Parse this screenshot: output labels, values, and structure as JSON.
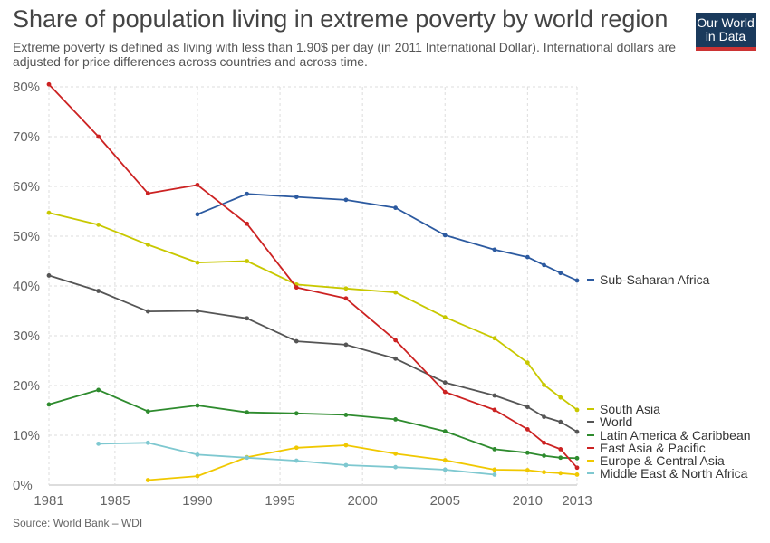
{
  "header": {
    "title": "Share of population living in extreme poverty by world region",
    "subtitle": "Extreme poverty is defined as living with less than 1.90$ per day (in 2011 International Dollar). International dollars are adjusted for price differences across countries and across time.",
    "logo_line1": "Our World",
    "logo_line2": "in Data"
  },
  "footer": {
    "source": "Source: World Bank – WDI"
  },
  "chart_data": {
    "type": "line",
    "title": "Share of population living in extreme poverty by world region",
    "xlabel": "",
    "ylabel": "",
    "xlim": [
      1981,
      2013
    ],
    "ylim": [
      0,
      80
    ],
    "x_ticks": [
      1981,
      1985,
      1990,
      1995,
      2000,
      2005,
      2010,
      2013
    ],
    "y_ticks": [
      0,
      10,
      20,
      30,
      40,
      50,
      60,
      70,
      80
    ],
    "y_tick_labels": [
      "0%",
      "10%",
      "20%",
      "30%",
      "40%",
      "50%",
      "60%",
      "70%",
      "80%"
    ],
    "grid": true,
    "legend": "right (labels at line ends)",
    "series": [
      {
        "name": "Sub-Saharan Africa",
        "color": "#2c5aa0",
        "points": [
          [
            1990,
            54.4
          ],
          [
            1993,
            58.5
          ],
          [
            1996,
            57.9
          ],
          [
            1999,
            57.3
          ],
          [
            2002,
            55.7
          ],
          [
            2005,
            50.2
          ],
          [
            2008,
            47.3
          ],
          [
            2010,
            45.8
          ],
          [
            2011,
            44.2
          ],
          [
            2012,
            42.6
          ],
          [
            2013,
            41.1
          ]
        ]
      },
      {
        "name": "South Asia",
        "color": "#c8c800",
        "points": [
          [
            1981,
            54.7
          ],
          [
            1984,
            52.3
          ],
          [
            1987,
            48.3
          ],
          [
            1990,
            44.7
          ],
          [
            1993,
            45.0
          ],
          [
            1996,
            40.3
          ],
          [
            1999,
            39.5
          ],
          [
            2002,
            38.7
          ],
          [
            2005,
            33.7
          ],
          [
            2008,
            29.5
          ],
          [
            2010,
            24.6
          ],
          [
            2011,
            20.1
          ],
          [
            2012,
            17.6
          ],
          [
            2013,
            15.1
          ]
        ]
      },
      {
        "name": "World",
        "color": "#555555",
        "points": [
          [
            1981,
            42.1
          ],
          [
            1984,
            39.0
          ],
          [
            1987,
            34.9
          ],
          [
            1990,
            35.0
          ],
          [
            1993,
            33.5
          ],
          [
            1996,
            28.9
          ],
          [
            1999,
            28.2
          ],
          [
            2002,
            25.4
          ],
          [
            2005,
            20.6
          ],
          [
            2008,
            18.0
          ],
          [
            2010,
            15.7
          ],
          [
            2011,
            13.7
          ],
          [
            2012,
            12.7
          ],
          [
            2013,
            10.7
          ]
        ]
      },
      {
        "name": "Latin America & Caribbean",
        "color": "#2e8b2e",
        "points": [
          [
            1981,
            16.2
          ],
          [
            1984,
            19.1
          ],
          [
            1987,
            14.8
          ],
          [
            1990,
            16.0
          ],
          [
            1993,
            14.6
          ],
          [
            1996,
            14.4
          ],
          [
            1999,
            14.1
          ],
          [
            2002,
            13.2
          ],
          [
            2005,
            10.8
          ],
          [
            2008,
            7.2
          ],
          [
            2010,
            6.5
          ],
          [
            2011,
            5.9
          ],
          [
            2012,
            5.5
          ],
          [
            2013,
            5.4
          ]
        ]
      },
      {
        "name": "East Asia & Pacific",
        "color": "#cc2222",
        "points": [
          [
            1981,
            80.5
          ],
          [
            1984,
            70.0
          ],
          [
            1987,
            58.6
          ],
          [
            1990,
            60.3
          ],
          [
            1993,
            52.5
          ],
          [
            1996,
            39.7
          ],
          [
            1999,
            37.5
          ],
          [
            2002,
            29.1
          ],
          [
            2005,
            18.7
          ],
          [
            2008,
            15.1
          ],
          [
            2010,
            11.2
          ],
          [
            2011,
            8.5
          ],
          [
            2012,
            7.2
          ],
          [
            2013,
            3.5
          ]
        ]
      },
      {
        "name": "Europe & Central Asia",
        "color": "#f0c800",
        "points": [
          [
            1987,
            1.0
          ],
          [
            1990,
            1.8
          ],
          [
            1993,
            5.6
          ],
          [
            1996,
            7.5
          ],
          [
            1999,
            8.0
          ],
          [
            2002,
            6.3
          ],
          [
            2005,
            5.0
          ],
          [
            2008,
            3.1
          ],
          [
            2010,
            3.0
          ],
          [
            2011,
            2.6
          ],
          [
            2012,
            2.4
          ],
          [
            2013,
            2.1
          ]
        ]
      },
      {
        "name": "Middle East & North Africa",
        "color": "#7ec8d0",
        "points": [
          [
            1984,
            8.3
          ],
          [
            1987,
            8.5
          ],
          [
            1990,
            6.1
          ],
          [
            1993,
            5.5
          ],
          [
            1996,
            4.9
          ],
          [
            1999,
            4.0
          ],
          [
            2002,
            3.6
          ],
          [
            2005,
            3.1
          ],
          [
            2008,
            2.1
          ]
        ]
      }
    ]
  }
}
